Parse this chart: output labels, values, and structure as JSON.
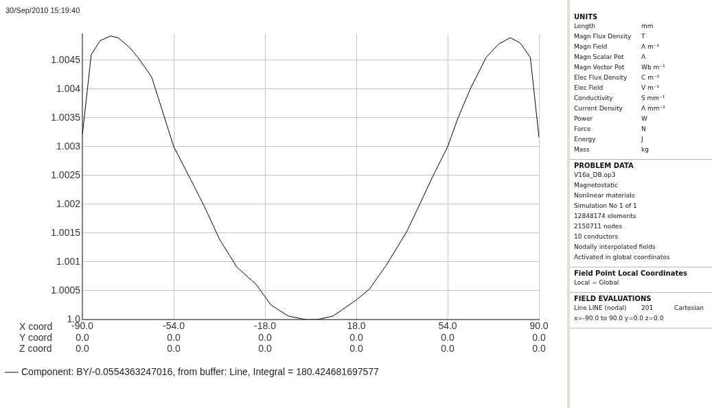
{
  "chart_data": [
    {
      "type": "line",
      "annotations": [
        "30/Sep/2010 15:19:40",
        "Y coord\t0.0\t0.0\t0.0\t0.0\t0.0\t0.0",
        "Z coord\t0.0\t0.0\t0.0\t0.0\t0.0\t0.0"
      ],
      "xlabel": "X coord",
      "x": [
        -90,
        -86.5,
        -83,
        -78.9,
        -75.9,
        -71.6,
        -68.3,
        -62.7,
        -54,
        -48,
        -42,
        -35.9,
        -29.1,
        -21.5,
        -15.6,
        -8.8,
        -2,
        2.6,
        8.8,
        18,
        23.2,
        29.9,
        37.8,
        43.2,
        48.3,
        54,
        58.1,
        63,
        69.2,
        74.1,
        78.7,
        82.6,
        86.6,
        90
      ],
      "series": [
        {
          "name": "Component: BY/-0.0554363247016, from buffer: Line, Integral = 180.424681697577",
          "color": "#000000",
          "values": [
            1.00321,
            1.0046,
            1.00484,
            1.00492,
            1.00489,
            1.00473,
            1.00456,
            1.00421,
            1.003,
            1.00249,
            1.00197,
            1.00139,
            1.00091,
            1.00061,
            1.00025,
            1.00006,
            1.0,
            1.0,
            1.00006,
            1.00034,
            1.00053,
            1.00095,
            1.00152,
            1.00202,
            1.0025,
            1.003,
            1.0035,
            1.00401,
            1.00455,
            1.00478,
            1.00489,
            1.0048,
            1.00455,
            1.00316
          ]
        }
      ],
      "xlim": [
        -90,
        90
      ],
      "xticks": [
        {
          "value": -90,
          "label": "-90.0"
        },
        {
          "value": -54,
          "label": "-54.0"
        },
        {
          "value": -18,
          "label": "-18.0"
        },
        {
          "value": 18,
          "label": "18.0"
        },
        {
          "value": 54,
          "label": "54.0"
        },
        {
          "value": 90,
          "label": "90.0"
        }
      ],
      "ylim": [
        1.0,
        1.00495
      ],
      "yticks": [
        {
          "value": 1.0,
          "label": "1.0"
        },
        1.0005,
        1.001,
        1.0015,
        1.002,
        1.0025,
        1.003,
        1.0035,
        1.004,
        1.0045
      ],
      "grid": true,
      "legend": "bottom",
      "marker": "none",
      "line_style": "solid"
    },
    {
      "type": "other",
      "title": "UNITS",
      "annotations": [
        "Length\tmm",
        "Magn Flux Density\tT",
        "Magn Field\tA m⁻¹",
        "Magn Scalar Pot\tA",
        "Magn Vector Pot\tWb m⁻¹",
        "Elec Flux Density\tC m⁻²",
        "Elec Field\tV m⁻¹",
        "Conductivity\tS mm⁻¹",
        "Current Density\tA mm⁻²",
        "Power\tW",
        "Force\tN",
        "Energy\tJ",
        "Mass\tkg"
      ]
    },
    {
      "type": "other",
      "title": "PROBLEM DATA",
      "annotations": [
        "V16a_DB.op3",
        "Magnetostatic",
        "Nonlinear materials",
        "Simulation No 1 of 1",
        "12848174 elements",
        "2150711 nodes",
        "10 conductors",
        "Nodally interpolated fields",
        "Activated in global coordinates"
      ]
    },
    {
      "type": "other",
      "title": "Field Point Local Coordinates",
      "annotations": [
        "Local = Global"
      ]
    },
    {
      "type": "other",
      "title": "FIELD EVALUATIONS",
      "annotations": [
        "Line LINE (nodal)\t201\tCartesian",
        "x=-90.0 to 90.0 y=0.0 z=0.0"
      ]
    }
  ]
}
